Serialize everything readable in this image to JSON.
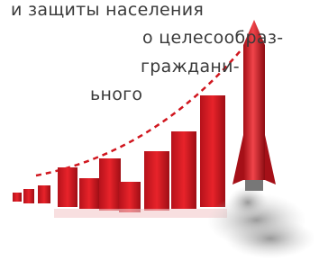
{
  "text": {
    "lines": [
      "и защиты населения",
      "о целесообраз-",
      "граждани-",
      "ьного"
    ]
  }
}
